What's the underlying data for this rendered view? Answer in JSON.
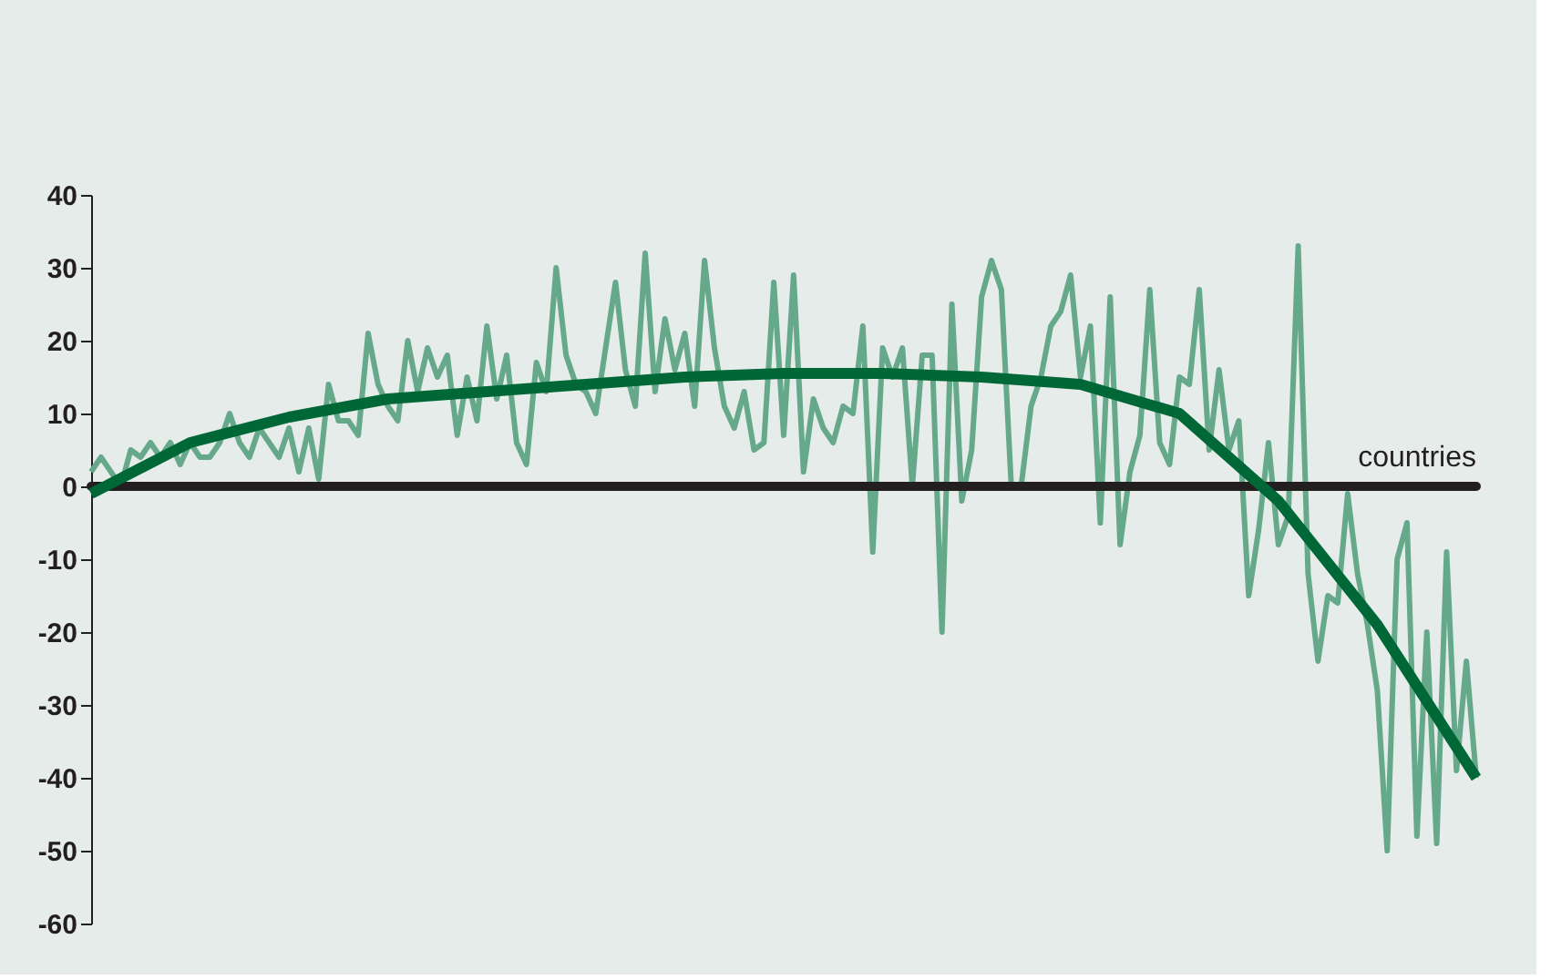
{
  "chart_data": {
    "type": "line",
    "categories": [
      null,
      null,
      null,
      null,
      null,
      null,
      null,
      null,
      null,
      null,
      null,
      null,
      null,
      null,
      null,
      null,
      null,
      null,
      null,
      null,
      null,
      null,
      null,
      null,
      null,
      null,
      null,
      null,
      null,
      null,
      null,
      null,
      null,
      null,
      null,
      null,
      null,
      null,
      null,
      null,
      null,
      null,
      null,
      null,
      null,
      null,
      null,
      null,
      null,
      null,
      null,
      null,
      null,
      null,
      null,
      null,
      null,
      null,
      null,
      null,
      null,
      null,
      null,
      null,
      null,
      null,
      null,
      null,
      null,
      null,
      null,
      null,
      null,
      null,
      null,
      null,
      null,
      null,
      null,
      null,
      null,
      null,
      null,
      null,
      null,
      null,
      null,
      null,
      null,
      null,
      null,
      null,
      null,
      null,
      null,
      null,
      null,
      null,
      null,
      null,
      null,
      null,
      null,
      null,
      null,
      null,
      null,
      null,
      null,
      null,
      null,
      null,
      null,
      null,
      null,
      null,
      null,
      null,
      null,
      null,
      null,
      null,
      null,
      null,
      null,
      null,
      null,
      null,
      null,
      null,
      null,
      null,
      null,
      null,
      null,
      null,
      null,
      null,
      null,
      null,
      null
    ],
    "series": [
      {
        "color": "#66a88a",
        "values": [
          2,
          4,
          2,
          0,
          5,
          4,
          6,
          4,
          6,
          3,
          6,
          4,
          4,
          6,
          10,
          6,
          4,
          8,
          6,
          4,
          8,
          2,
          8,
          1,
          14,
          9,
          9,
          7,
          21,
          14,
          11,
          9,
          20,
          13,
          19,
          15,
          18,
          7,
          15,
          9,
          22,
          12,
          18,
          6,
          3,
          17,
          13,
          30,
          18,
          14,
          13,
          10,
          19,
          28,
          16,
          11,
          32,
          13,
          23,
          16,
          21,
          11,
          31,
          19,
          11,
          8,
          13,
          5,
          6,
          28,
          7,
          29,
          2,
          12,
          8,
          6,
          11,
          10,
          22,
          -9,
          19,
          15,
          19,
          0,
          18,
          18,
          -20,
          25,
          -2,
          5,
          26,
          31,
          27,
          0,
          0,
          11,
          15,
          22,
          24,
          29,
          15,
          22,
          -5,
          26,
          -8,
          2,
          7,
          27,
          6,
          3,
          15,
          14,
          27,
          5,
          16,
          5,
          9,
          -15,
          -6,
          6,
          -8,
          -4,
          33,
          -12,
          -24,
          -15,
          -16,
          -1,
          -12,
          -19,
          -28,
          -50,
          -10,
          -5,
          -48,
          -20,
          -49,
          -9,
          -39,
          -24,
          -40
        ]
      },
      {
        "color": "#006837",
        "values": [
          -1,
          null,
          null,
          null,
          null,
          null,
          null,
          null,
          null,
          null,
          6,
          null,
          null,
          null,
          null,
          null,
          null,
          null,
          null,
          null,
          9.5,
          null,
          null,
          null,
          null,
          null,
          null,
          null,
          null,
          null,
          12,
          null,
          null,
          null,
          null,
          null,
          null,
          null,
          null,
          null,
          13,
          null,
          null,
          null,
          null,
          null,
          null,
          null,
          null,
          null,
          14,
          null,
          null,
          null,
          null,
          null,
          null,
          null,
          null,
          null,
          15,
          null,
          null,
          null,
          null,
          null,
          null,
          null,
          null,
          null,
          15.5,
          null,
          null,
          null,
          null,
          null,
          null,
          null,
          null,
          null,
          15.5,
          null,
          null,
          null,
          null,
          null,
          null,
          null,
          null,
          null,
          15,
          null,
          null,
          null,
          null,
          null,
          null,
          null,
          null,
          null,
          14,
          null,
          null,
          null,
          null,
          null,
          null,
          null,
          null,
          null,
          10,
          null,
          null,
          null,
          null,
          null,
          null,
          null,
          null,
          null,
          -2,
          null,
          null,
          null,
          null,
          null,
          null,
          null,
          null,
          null,
          -19,
          null,
          null,
          null,
          null,
          null,
          null,
          null,
          null,
          null,
          -40
        ]
      }
    ],
    "ylim": [
      -60,
      40
    ],
    "yticks": [
      -60,
      -50,
      -40,
      -30,
      -20,
      -10,
      0,
      10,
      20,
      30,
      40
    ],
    "ref_lines": [
      {
        "axis": "y",
        "value": 0,
        "label": "countries",
        "color": "#231f20"
      }
    ],
    "tick_labels": "y",
    "grid": false,
    "marker": "none",
    "line_style": "solid"
  }
}
